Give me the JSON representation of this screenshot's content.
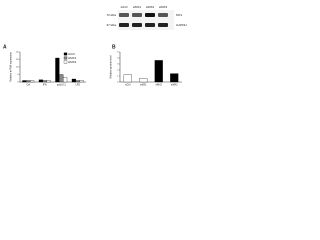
{
  "blot": {
    "lanes": [
      "siCtrl",
      "siMX1",
      "siMX2",
      "siMX3"
    ],
    "bands": [
      "MX1",
      "GAPDH"
    ],
    "markers": [
      "72 kDa",
      "37 kDa"
    ]
  },
  "chart_data": [
    {
      "type": "bar",
      "panel": "A",
      "ylabel": "Relative mRNA expression",
      "categories": [
        "Ctrl",
        "IFN",
        "poly(I:C)",
        "LPS"
      ],
      "series": [
        {
          "name": "siCtrl",
          "color": "#000000",
          "values": [
            1,
            1.5,
            16,
            2
          ]
        },
        {
          "name": "siMX1",
          "color": "#888888",
          "values": [
            1,
            1,
            5,
            1
          ]
        },
        {
          "name": "siMX2",
          "color": "#ffffff",
          "values": [
            1,
            1,
            3,
            1
          ]
        }
      ],
      "ylim": [
        0,
        20
      ],
      "yticks": [
        0,
        5,
        10,
        15,
        20
      ]
    },
    {
      "type": "bar",
      "panel": "B",
      "ylabel": "Relative protein level",
      "categories": [
        "siCtrl",
        "siMX1",
        "siMX2",
        "siMX3"
      ],
      "values": [
        1.2,
        0.6,
        3.6,
        1.4
      ],
      "colors": [
        "#ffffff",
        "#ffffff",
        "#000000",
        "#000000"
      ],
      "ylim": [
        0,
        5
      ],
      "yticks": [
        0,
        1,
        2,
        3,
        4,
        5
      ]
    }
  ]
}
